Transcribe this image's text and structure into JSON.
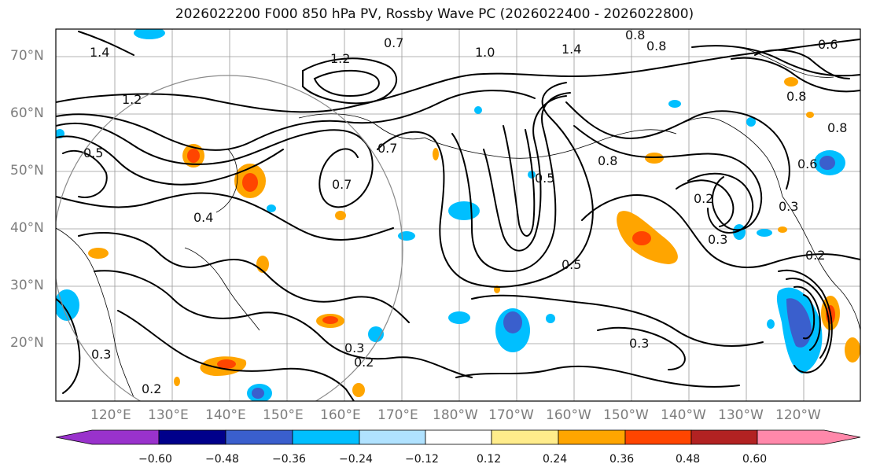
{
  "title": "2026022200 F000 850 hPa PV, Rossby Wave PC (2026022400 - 2026022800)",
  "map": {
    "lat_labels": [
      "70°N",
      "60°N",
      "50°N",
      "40°N",
      "30°N",
      "20°N"
    ],
    "lon_labels": [
      "120°E",
      "130°E",
      "140°E",
      "150°E",
      "160°E",
      "170°E",
      "180°W",
      "170°W",
      "160°W",
      "150°W",
      "140°W",
      "130°W",
      "120°W"
    ],
    "contour_labels": [
      "1.4",
      "0.8",
      "0.7",
      "1.0",
      "1.4",
      "0.8",
      "1.2",
      "1.2",
      "0.5",
      "0.7",
      "0.7",
      "0.8",
      "0.4",
      "0.3",
      "0.2",
      "0.5",
      "0.3",
      "0.2",
      "0.3",
      "0.2",
      "0.3",
      "0.6",
      "0.8",
      "0.6",
      "0.8",
      "0.5",
      "0.2",
      "0.3"
    ]
  },
  "colorbar": {
    "ticks": [
      "−0.60",
      "−0.48",
      "−0.36",
      "−0.24",
      "−0.12",
      "0.12",
      "0.24",
      "0.36",
      "0.48",
      "0.60"
    ],
    "colors": [
      "#9932cc",
      "#00008b",
      "#3a5fcd",
      "#00bfff",
      "#b0e2ff",
      "#ffffff",
      "#ffec8b",
      "#ffa500",
      "#ff4500",
      "#b22222",
      "#ff88aa"
    ]
  }
}
